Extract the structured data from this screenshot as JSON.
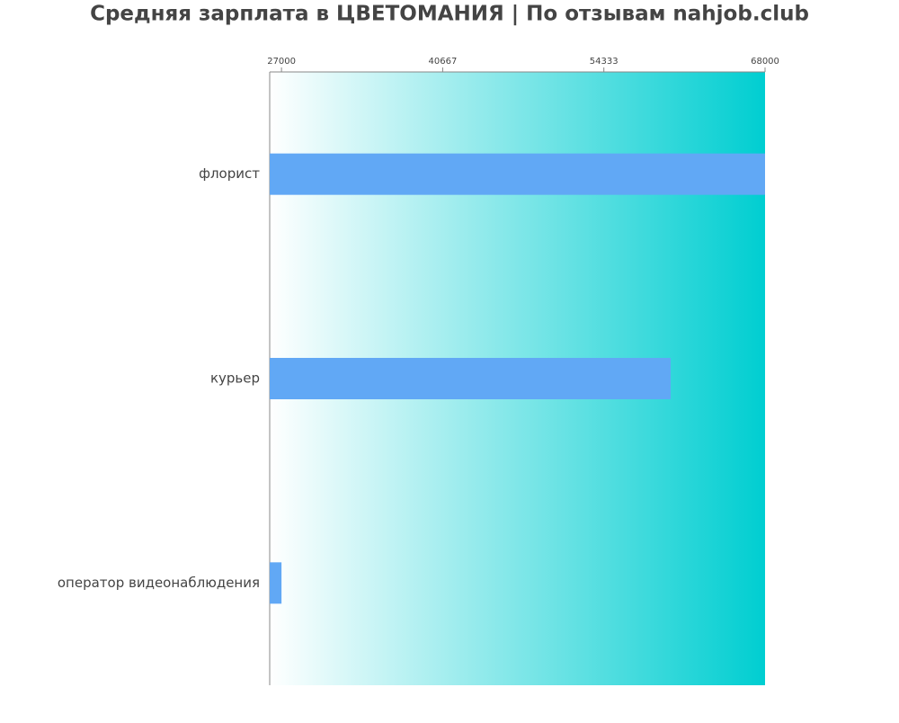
{
  "chart_data": {
    "type": "barh",
    "title": "Средняя зарплата в ЦВЕТОМАНИЯ | По отзывам nahjob.club",
    "categories": [
      "флорист",
      "курьер",
      "оператор видеонаблюдения"
    ],
    "values": [
      68000,
      60000,
      27000
    ],
    "color": "#61a8f5",
    "background_gradient": [
      "#ffffff",
      "#00ced1"
    ],
    "xlim": [
      26000,
      68000
    ],
    "xticks": [
      27000,
      40667,
      54333,
      68000
    ]
  }
}
